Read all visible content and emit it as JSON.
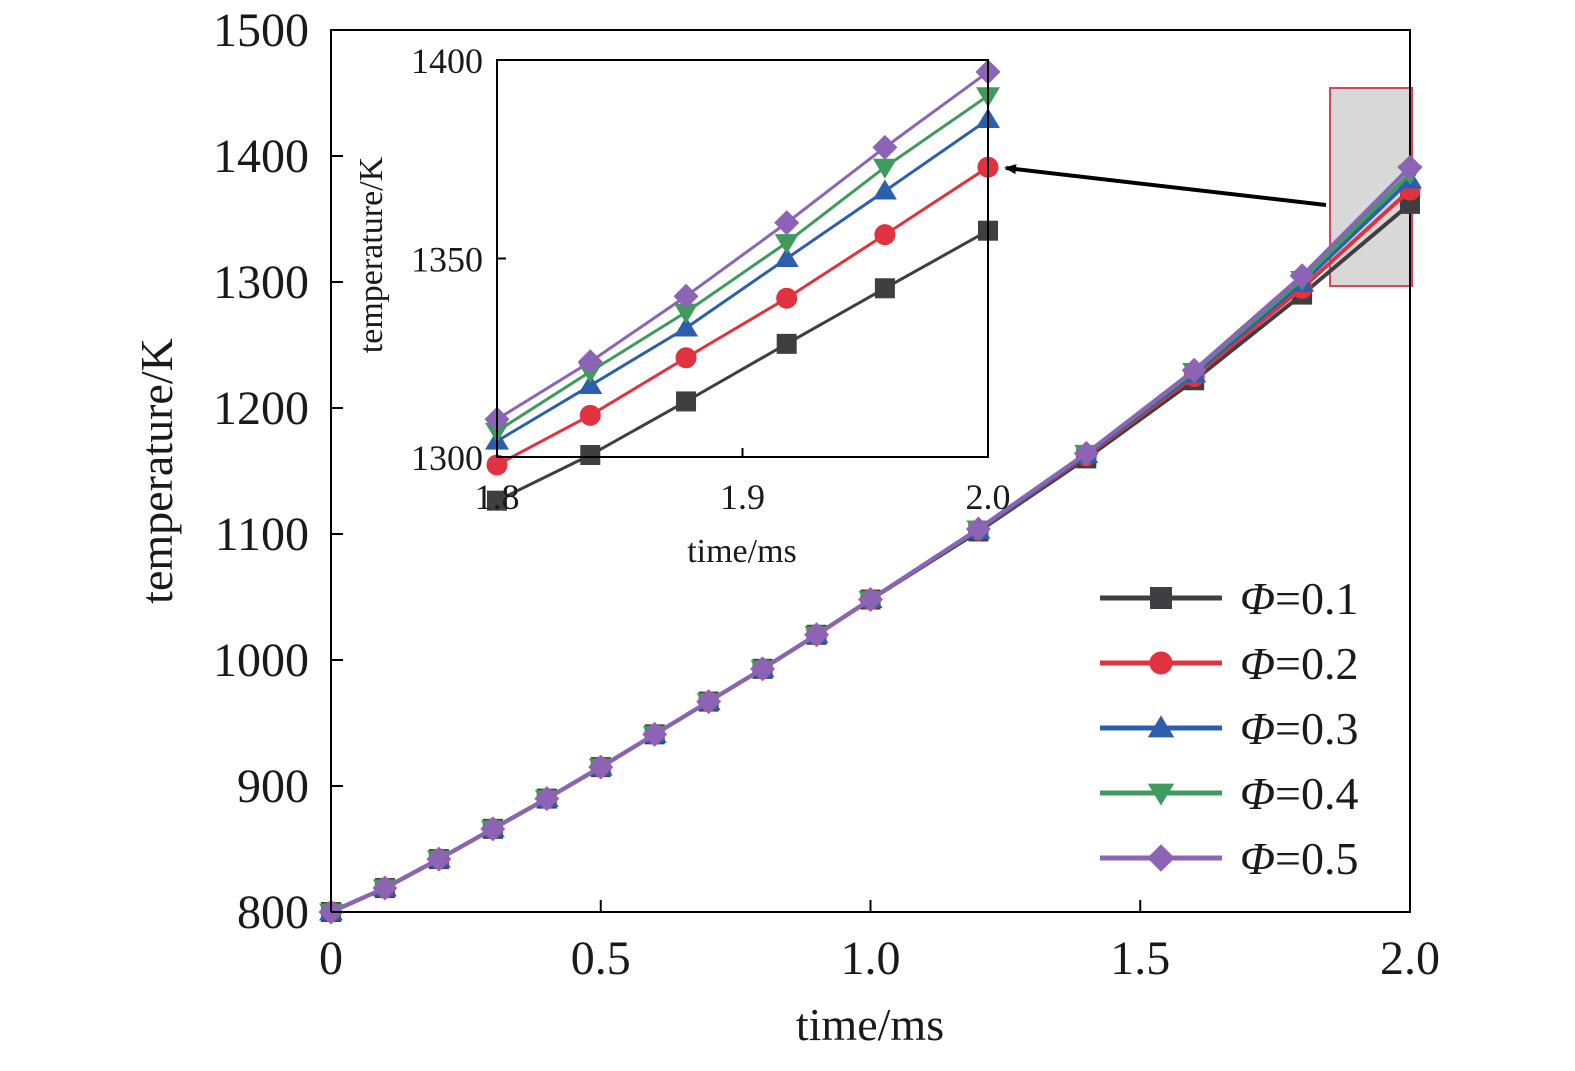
{
  "chart_data": [
    {
      "type": "line",
      "xlabel": "time/ms",
      "ylabel": "temperature/K",
      "xlim": [
        0,
        2.0
      ],
      "ylim": [
        800,
        1500
      ],
      "xticks": [
        "0",
        "0.5",
        "1.0",
        "1.5",
        "2.0"
      ],
      "xtick_values": [
        0,
        0.5,
        1.0,
        1.5,
        2.0
      ],
      "yticks": [
        "800",
        "900",
        "1000",
        "1100",
        "1200",
        "1300",
        "1400",
        "1500"
      ],
      "ytick_values": [
        800,
        900,
        1000,
        1100,
        1200,
        1300,
        1400,
        1500
      ],
      "grid": false,
      "legend_position": "bottom-right",
      "x": [
        0,
        0.1,
        0.2,
        0.3,
        0.4,
        0.5,
        0.6,
        0.7,
        0.8,
        0.9,
        1.0,
        1.2,
        1.4,
        1.6,
        1.8,
        2.0
      ],
      "series": [
        {
          "name": "Φ=0.1",
          "color": "#3f3f42",
          "marker": "square",
          "values": [
            800,
            819,
            842,
            866,
            890,
            915,
            941,
            967,
            993,
            1020,
            1048,
            1102,
            1160,
            1222,
            1290,
            1362
          ]
        },
        {
          "name": "Φ=0.2",
          "color": "#e0323f",
          "marker": "circle",
          "values": [
            800,
            819,
            842,
            866,
            890,
            915,
            941,
            967,
            993,
            1020,
            1048,
            1103,
            1162,
            1225,
            1295,
            1373
          ]
        },
        {
          "name": "Φ=0.3",
          "color": "#2b5fad",
          "marker": "triangle-up",
          "values": [
            800,
            819,
            842,
            866,
            890,
            915,
            941,
            967,
            993,
            1020,
            1048,
            1103,
            1163,
            1227,
            1299,
            1381
          ]
        },
        {
          "name": "Φ=0.4",
          "color": "#3f9b5c",
          "marker": "triangle-down",
          "values": [
            800,
            819,
            842,
            866,
            890,
            915,
            941,
            967,
            993,
            1020,
            1048,
            1104,
            1164,
            1229,
            1302,
            1386
          ]
        },
        {
          "name": "Φ=0.5",
          "color": "#8c63b5",
          "marker": "diamond",
          "values": [
            800,
            819,
            842,
            866,
            890,
            915,
            941,
            967,
            993,
            1020,
            1048,
            1104,
            1164,
            1230,
            1305,
            1391
          ]
        }
      ]
    },
    {
      "type": "line",
      "xlabel": "time/ms",
      "ylabel": "temperature/K",
      "xlim": [
        1.8,
        2.0
      ],
      "ylim": [
        1300,
        1400
      ],
      "xticks": [
        "1.8",
        "1.9",
        "2.0"
      ],
      "xtick_values": [
        1.8,
        1.9,
        2.0
      ],
      "yticks": [
        "1300",
        "1350",
        "1400"
      ],
      "ytick_values": [
        1300,
        1350,
        1400
      ],
      "grid": false,
      "x": [
        1.8,
        1.838,
        1.877,
        1.918,
        1.958,
        2.0
      ],
      "series": [
        {
          "name": "Φ=0.1",
          "color": "#3f3f42",
          "marker": "square",
          "values": [
            1289,
            1300.5,
            1314,
            1328.5,
            1342.5,
            1357
          ]
        },
        {
          "name": "Φ=0.2",
          "color": "#e0323f",
          "marker": "circle",
          "values": [
            1298,
            1310.5,
            1325,
            1340,
            1356,
            1373
          ]
        },
        {
          "name": "Φ=0.3",
          "color": "#2b5fad",
          "marker": "triangle-up",
          "values": [
            1304,
            1318,
            1332.5,
            1350,
            1367,
            1385
          ]
        },
        {
          "name": "Φ=0.4",
          "color": "#3f9b5c",
          "marker": "triangle-down",
          "values": [
            1306.5,
            1321.5,
            1336.5,
            1354,
            1373,
            1391
          ]
        },
        {
          "name": "Φ=0.5",
          "color": "#8c63b5",
          "marker": "diamond",
          "values": [
            1309.5,
            1324,
            1340.5,
            1359,
            1378,
            1397
          ]
        }
      ]
    }
  ]
}
